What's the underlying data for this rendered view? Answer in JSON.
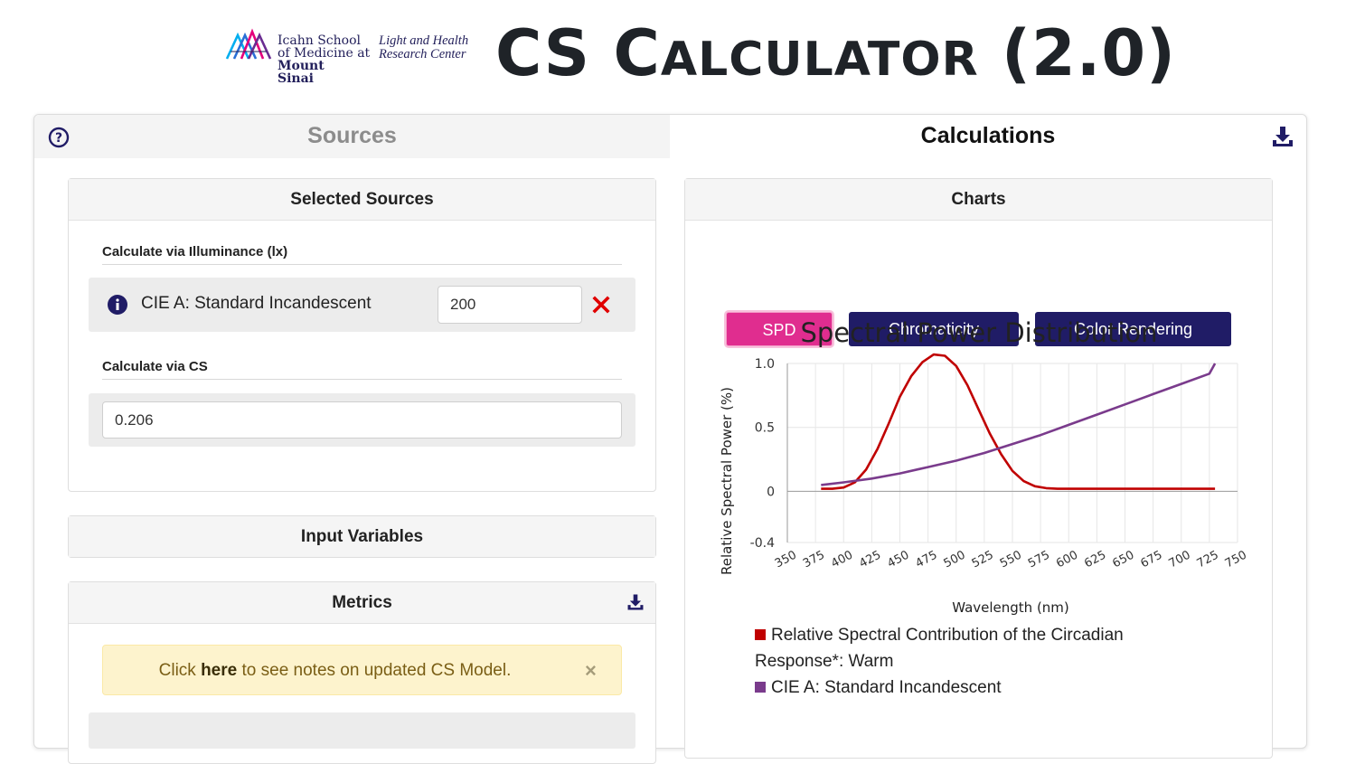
{
  "header": {
    "institution_lines": [
      "Icahn School",
      "of Medicine at",
      "Mount",
      "Sinai"
    ],
    "center_lines": [
      "Light and Health",
      "Research Center"
    ],
    "title_parts": [
      "CS C",
      "ALCULATOR",
      " (2.0)"
    ]
  },
  "tabs": {
    "sources": "Sources",
    "calculations": "Calculations"
  },
  "selected_sources": {
    "title": "Selected Sources",
    "illuminance_label": "Calculate via Illuminance (lx)",
    "source_name": "CIE A: Standard Incandescent",
    "illuminance_value": "200",
    "cs_label": "Calculate via CS",
    "cs_value": "0.206"
  },
  "input_variables": {
    "title": "Input Variables"
  },
  "metrics": {
    "title": "Metrics",
    "alert_prefix": "Click ",
    "alert_link": "here",
    "alert_suffix": " to see notes on updated CS Model.",
    "alert_close": "×"
  },
  "charts_panel": {
    "title": "Charts",
    "buttons": [
      "SPD",
      "Chromaticity",
      "Color Rendering"
    ],
    "active_button": "SPD"
  },
  "colors": {
    "spd_button": "#e02d8f",
    "nav_button": "#201c66",
    "circadian_line": "#c00000",
    "incandescent_line": "#7a3b8c"
  },
  "chart_data": {
    "type": "line",
    "title": "Spectral Power Distribution",
    "xlabel": "Wavelength (nm)",
    "ylabel": "Relative Spectral Power (%)",
    "xlim": [
      350,
      750
    ],
    "ylim": [
      -0.4,
      1.0
    ],
    "x_ticks": [
      350,
      375,
      400,
      425,
      450,
      475,
      500,
      525,
      550,
      575,
      600,
      625,
      650,
      675,
      700,
      725,
      750
    ],
    "y_ticks": [
      1.0,
      0.5,
      0,
      -0.4
    ],
    "y_tick_labels": [
      "1.0",
      "0.5",
      "0",
      "-0.4"
    ],
    "grid": true,
    "legend_position": "bottom",
    "series": [
      {
        "name": "Relative Spectral Contribution of the Circadian Response*: Warm",
        "color": "#c00000",
        "x": [
          380,
          390,
          400,
          410,
          420,
          430,
          440,
          450,
          460,
          470,
          480,
          490,
          500,
          510,
          520,
          530,
          540,
          550,
          560,
          570,
          580,
          590,
          600,
          620,
          650,
          680,
          710,
          730
        ],
        "y": [
          0.02,
          0.02,
          0.03,
          0.07,
          0.17,
          0.33,
          0.53,
          0.74,
          0.9,
          1.01,
          1.07,
          1.06,
          0.98,
          0.83,
          0.64,
          0.45,
          0.29,
          0.16,
          0.08,
          0.04,
          0.025,
          0.02,
          0.02,
          0.02,
          0.02,
          0.02,
          0.02,
          0.02
        ]
      },
      {
        "name": "CIE A: Standard Incandescent",
        "color": "#7a3b8c",
        "x": [
          380,
          400,
          425,
          450,
          475,
          500,
          525,
          550,
          575,
          600,
          625,
          650,
          675,
          700,
          725,
          730
        ],
        "y": [
          0.05,
          0.07,
          0.1,
          0.14,
          0.19,
          0.24,
          0.3,
          0.37,
          0.44,
          0.52,
          0.6,
          0.68,
          0.76,
          0.84,
          0.92,
          1.0
        ]
      }
    ]
  }
}
